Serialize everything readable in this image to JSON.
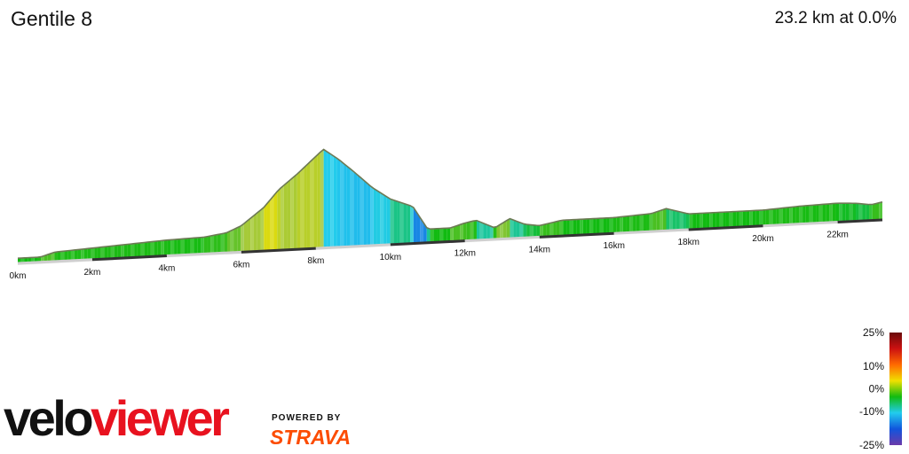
{
  "header": {
    "title": "Gentile 8",
    "summary": "23.2 km at 0.0%"
  },
  "branding": {
    "logo_part1": "velo",
    "logo_part2": "viewer",
    "powered_by": "POWERED BY",
    "strava": "STRAVA"
  },
  "colors": {
    "strava_orange": "#fc4c02",
    "logo_red": "#e8121f"
  },
  "chart_data": {
    "type": "area",
    "xlabel": "",
    "ylabel": "",
    "xlim": [
      0,
      23.2
    ],
    "x_ticks": [
      {
        "value": 0,
        "label": "0km"
      },
      {
        "value": 2,
        "label": "2km"
      },
      {
        "value": 4,
        "label": "4km"
      },
      {
        "value": 6,
        "label": "6km"
      },
      {
        "value": 8,
        "label": "8km"
      },
      {
        "value": 10,
        "label": "10km"
      },
      {
        "value": 12,
        "label": "12km"
      },
      {
        "value": 14,
        "label": "14km"
      },
      {
        "value": 16,
        "label": "16km"
      },
      {
        "value": 18,
        "label": "18km"
      },
      {
        "value": 20,
        "label": "20km"
      },
      {
        "value": 22,
        "label": "22km"
      }
    ],
    "distance_km": [
      0,
      0.6,
      1.0,
      2.0,
      3.0,
      4.0,
      5.0,
      5.6,
      6.0,
      6.6,
      7.0,
      7.5,
      8.2,
      8.6,
      9.0,
      9.5,
      10.0,
      10.6,
      11.0,
      11.6,
      12.0,
      12.3,
      12.8,
      13.2,
      13.6,
      14.0,
      14.6,
      15.0,
      16.0,
      17.0,
      17.4,
      18.0,
      19.0,
      20.0,
      21.0,
      22.0,
      22.5,
      22.9,
      23.2
    ],
    "relative_elevation": [
      4,
      4,
      8,
      10,
      12,
      14,
      15,
      18,
      24,
      40,
      56,
      70,
      92,
      82,
      70,
      54,
      42,
      34,
      12,
      12,
      16,
      18,
      10,
      18,
      12,
      10,
      14,
      14,
      14,
      16,
      20,
      14,
      14,
      14,
      16,
      17,
      16,
      14,
      16
    ],
    "gradient_scale": [
      {
        "label": "25%",
        "value": 25
      },
      {
        "label": "10%",
        "value": 10
      },
      {
        "label": "0%",
        "value": 0
      },
      {
        "label": "-10%",
        "value": -10
      },
      {
        "label": "-25%",
        "value": -25
      }
    ],
    "gradient_colors": [
      "#6a0a0a",
      "#cc1111",
      "#ff6a00",
      "#f0e000",
      "#11bb11",
      "#22ccee",
      "#1155dd",
      "#6a3aaa"
    ],
    "grid": false,
    "legend": "right"
  }
}
